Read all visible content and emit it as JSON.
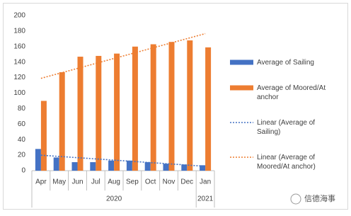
{
  "chart_data": {
    "type": "bar",
    "categories": [
      "Apr",
      "May",
      "Jun",
      "Jul",
      "Aug",
      "Sep",
      "Oct",
      "Nov",
      "Dec",
      "Jan"
    ],
    "x_groups": [
      {
        "label": "2020",
        "size": 9
      },
      {
        "label": "2021",
        "size": 1
      }
    ],
    "series": [
      {
        "name": "Average of Sailing",
        "color": "#4472c4",
        "values": [
          28,
          17,
          11,
          11,
          13,
          13,
          11,
          9,
          8,
          7
        ],
        "trendline": "Linear (Average of Sailing)"
      },
      {
        "name": "Average of Moored/At anchor",
        "color": "#ed7d31",
        "values": [
          90,
          127,
          147,
          148,
          151,
          160,
          163,
          166,
          168,
          159
        ],
        "trendline": "Linear (Average of Moored/At anchor)"
      }
    ],
    "ylim": [
      0,
      200
    ],
    "yticks": [
      0,
      20,
      40,
      60,
      80,
      100,
      120,
      140,
      160,
      180,
      200
    ],
    "grid": false,
    "legend": "right"
  },
  "watermark": "信德海事"
}
